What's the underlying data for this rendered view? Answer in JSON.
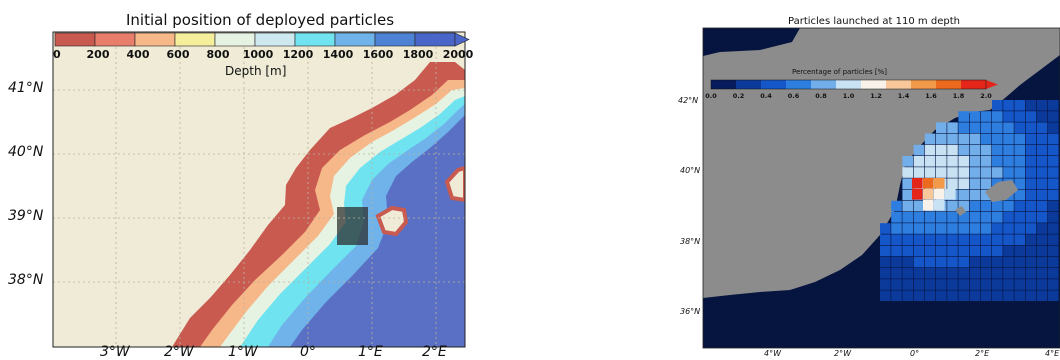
{
  "left_map": {
    "title": "Initial position of deployed particles",
    "colorbar": {
      "label": "Depth [m]",
      "ticks": [
        "0",
        "200",
        "400",
        "600",
        "800",
        "1000",
        "1200",
        "1400",
        "1600",
        "1800",
        "2000"
      ],
      "colors": [
        "#c85a50",
        "#e77d6a",
        "#f7b889",
        "#f5ef9c",
        "#e7f3e2",
        "#cde9ef",
        "#6fe3ef",
        "#6fb3ea",
        "#4d82d4",
        "#4a66c8"
      ]
    },
    "lat_labels": [
      "41°N",
      "40°N",
      "39°N",
      "38°N"
    ],
    "lon_labels": [
      "3°W",
      "2°W",
      "1°W",
      "0°",
      "1°E",
      "2°E"
    ],
    "colors": {
      "land": "#efebd6",
      "shelf": "#c85a50",
      "deep": "#5a70c4"
    }
  },
  "right_map": {
    "title": "Particles launched at 110 m depth",
    "colorbar": {
      "label": "Percentage of particles [%]",
      "ticks": [
        "0.0",
        "0.2",
        "0.4",
        "0.6",
        "0.8",
        "1.0",
        "1.2",
        "1.4",
        "1.6",
        "1.8",
        "2.0"
      ],
      "colors": [
        "#071a5c",
        "#0b3a9a",
        "#1556c8",
        "#2e7ee0",
        "#72aee9",
        "#c8e1f3",
        "#f9f2ea",
        "#f9c89a",
        "#f29a4a",
        "#ec6a1e",
        "#e3251a"
      ]
    },
    "lat_labels": [
      "42°N",
      "40°N",
      "38°N",
      "36°N"
    ],
    "lon_labels": [
      "4°W",
      "2°W",
      "0°",
      "2°E",
      "4°E"
    ],
    "colors": {
      "land": "#8c8c8c",
      "sea": "#061440"
    }
  }
}
